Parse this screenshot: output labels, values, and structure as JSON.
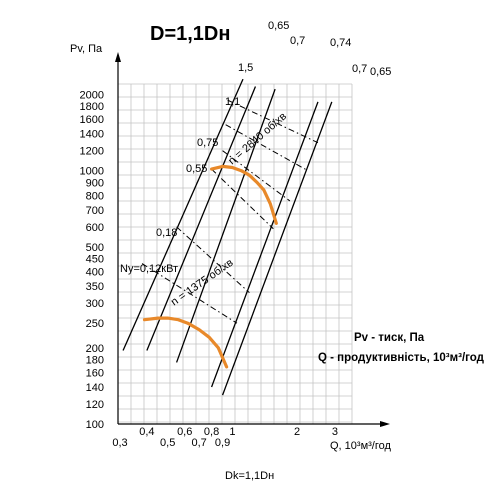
{
  "chart_data": {
    "type": "line",
    "title": "D=1,1Dн",
    "footer": "Dk=1,1Dн",
    "ylabel": "Pv, Па",
    "xlabel": "Q, 10³м³/год",
    "legend": {
      "line1": "Pv - тиск, Па",
      "line2": "Q - продуктивність, 10³м³/год"
    },
    "y_scale": "log",
    "x_scale": "log",
    "ylim": [
      100,
      2200
    ],
    "xlim": [
      0.3,
      3.6
    ],
    "y_ticks": [
      "100",
      "120",
      "140",
      "160",
      "180",
      "200",
      "250",
      "300",
      "350",
      "400",
      "450",
      "500",
      "600",
      "700",
      "800",
      "900",
      "1000",
      "1200",
      "1400",
      "1600",
      "1800",
      "2000"
    ],
    "x_ticks_row1": [
      "0,4",
      "0,6",
      "0,8",
      "1",
      "2",
      "3"
    ],
    "x_ticks_row2": [
      "0,3",
      "0,5",
      "0,7",
      "0,9"
    ],
    "efficiency_labels": [
      "0,65",
      "0,7",
      "0,74",
      "0,7",
      "0,65"
    ],
    "efficiency_lines": [
      {
        "label": "0,65",
        "x": [
          0.31,
          1.12
        ],
        "y": [
          195,
          2300
        ]
      },
      {
        "label": "0,7",
        "x": [
          0.4,
          1.28
        ],
        "y": [
          195,
          2150
        ]
      },
      {
        "label": "0,74",
        "x": [
          0.55,
          1.58
        ],
        "y": [
          175,
          2100
        ]
      },
      {
        "label": "0,7",
        "x": [
          0.8,
          2.5
        ],
        "y": [
          140,
          1870
        ]
      },
      {
        "label": "0,65",
        "x": [
          0.9,
          2.9
        ],
        "y": [
          130,
          1870
        ]
      }
    ],
    "power_labels": [
      "1,5",
      "1,1",
      "0,75",
      "0,55",
      "0,18"
    ],
    "power_label_ny": "Ny=0,12кВт",
    "power_lines": [
      {
        "label": "1,5",
        "x": [
          0.95,
          2.5
        ],
        "y": [
          1900,
          1290
        ]
      },
      {
        "label": "1,1",
        "x": [
          0.93,
          2.2
        ],
        "y": [
          1520,
          1010
        ]
      },
      {
        "label": "0,75",
        "x": [
          0.9,
          1.85
        ],
        "y": [
          1200,
          760
        ]
      },
      {
        "label": "0,55",
        "x": [
          0.8,
          1.55
        ],
        "y": [
          1015,
          590
        ]
      },
      {
        "label": "0,18",
        "x": [
          0.55,
          1.2
        ],
        "y": [
          600,
          330
        ]
      },
      {
        "label": "Ny=0,12кВт",
        "x": [
          0.38,
          1.05
        ],
        "y": [
          430,
          250
        ]
      }
    ],
    "series": [
      {
        "name": "n = 2840 об/хв",
        "x": [
          0.8,
          0.9,
          1.0,
          1.1,
          1.2,
          1.3,
          1.4,
          1.5,
          1.6
        ],
        "y": [
          1015,
          1040,
          1030,
          1000,
          960,
          900,
          840,
          740,
          620
        ]
      },
      {
        "name": "n = 1375 об/хв",
        "x": [
          0.39,
          0.45,
          0.5,
          0.56,
          0.62,
          0.7,
          0.78,
          0.86,
          0.94
        ],
        "y": [
          258,
          262,
          262,
          258,
          250,
          236,
          220,
          200,
          168
        ]
      }
    ],
    "grid": true,
    "curve_color": "#e8892a"
  }
}
